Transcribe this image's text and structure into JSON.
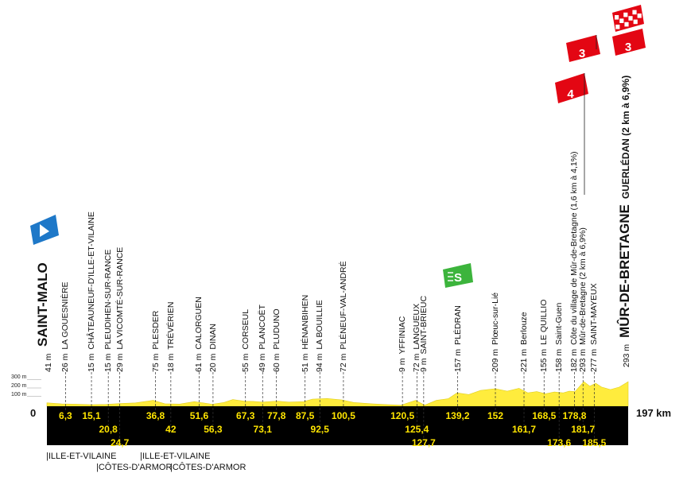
{
  "profile": {
    "total_km_label": "197 km",
    "start_km_label": "0",
    "altitude_labels": [
      "300 m",
      "200 m",
      "100 m"
    ],
    "colors": {
      "band": "#000000",
      "profile_fill": "#ffec3d",
      "km_text": "#ffe500",
      "climb": "#e30613",
      "sprint": "#3cb43c",
      "start": "#1e78c8"
    }
  },
  "start": {
    "place": "SAINT-MALO",
    "alt": "41 m"
  },
  "finish": {
    "place": "MÛR-DE-BRETAGNE",
    "suffix": "GUERLÉDAN (2 km à 6,9%)",
    "alt": "293 m"
  },
  "waypoints": [
    {
      "km": "6,3",
      "row": 1,
      "alt": "26 m",
      "name": "LA GOUESNIÈRE"
    },
    {
      "km": "15,1",
      "row": 1,
      "alt": "15 m",
      "name": "CHÂTEAUNEUF-D'ILLE-ET-VILAINE"
    },
    {
      "km": "20,8",
      "row": 2,
      "alt": "15 m",
      "name": "PLEUDIHEN-SUR-RANCE"
    },
    {
      "km": "24,7",
      "row": 3,
      "alt": "29 m",
      "name": "LA VICOMTÉ-SUR-RANCE"
    },
    {
      "km": "36,8",
      "row": 1,
      "alt": "75 m",
      "name": "PLESDER"
    },
    {
      "km": "42",
      "row": 2,
      "alt": "18 m",
      "name": "TRÉVÉRIEN"
    },
    {
      "km": "51,6",
      "row": 1,
      "alt": "61 m",
      "name": "CALORGUEN"
    },
    {
      "km": "56,3",
      "row": 2,
      "alt": "20 m",
      "name": "DINAN"
    },
    {
      "km": "67,3",
      "row": 1,
      "alt": "55 m",
      "name": "CORSEUL"
    },
    {
      "km": "73,1",
      "row": 2,
      "alt": "49 m",
      "name": "PLANCOËT"
    },
    {
      "km": "77,8",
      "row": 1,
      "alt": "60 m",
      "name": "PLUDUNO"
    },
    {
      "km": "87,5",
      "row": 1,
      "alt": "51 m",
      "name": "HÉNANBIHEN"
    },
    {
      "km": "92,5",
      "row": 2,
      "alt": "94 m",
      "name": "LA BOUILLIE"
    },
    {
      "km": "100,5",
      "row": 1,
      "alt": "72 m",
      "name": "PLÉNEUF-VAL-ANDRÉ"
    },
    {
      "km": "120,5",
      "row": 1,
      "alt": "9 m",
      "name": "YFFINIAC"
    },
    {
      "km": "125,4",
      "row": 2,
      "alt": "72 m",
      "name": "LANGUEUX"
    },
    {
      "km": "127,7",
      "row": 3,
      "alt": "9 m",
      "name": "SAINT-BRIEUC"
    },
    {
      "km": "139,2",
      "row": 1,
      "alt": "157 m",
      "name": "PLÉDRAN"
    },
    {
      "km": "152",
      "row": 1,
      "alt": "209 m",
      "name": "Plœuc-sur-Lié"
    },
    {
      "km": "161,7",
      "row": 2,
      "alt": "221 m",
      "name": "Berlouze"
    },
    {
      "km": "168,5",
      "row": 1,
      "alt": "155 m",
      "name": "LE QUILLIO"
    },
    {
      "km": "173,6",
      "row": 3,
      "alt": "158 m",
      "name": "Saint-Guen"
    },
    {
      "km": "178,8",
      "row": 1,
      "alt": "182 m",
      "name": "Côte du village de Mûr-de-Bretagne (1,6 km à 4,1%)"
    },
    {
      "km": "181,7",
      "row": 2,
      "alt": "293 m",
      "name": "Mûr-de-Bretagne (2 km à 6,9%)"
    },
    {
      "km": "185,5",
      "row": 3,
      "alt": "277 m",
      "name": "SAINT-MAYEUX"
    }
  ],
  "departments": [
    {
      "name": "ILLE-ET-VILAINE",
      "level": 1
    },
    {
      "name": "CÔTES-D'ARMOR",
      "level": 2
    },
    {
      "name": "ILLE-ET-VILAINE",
      "level": 1
    },
    {
      "name": "CÔTES-D'ARMOR",
      "level": 2
    }
  ],
  "badges": {
    "sprint_label": "S",
    "climb_4": "4",
    "climb_3a": "3",
    "climb_3b": "3"
  }
}
